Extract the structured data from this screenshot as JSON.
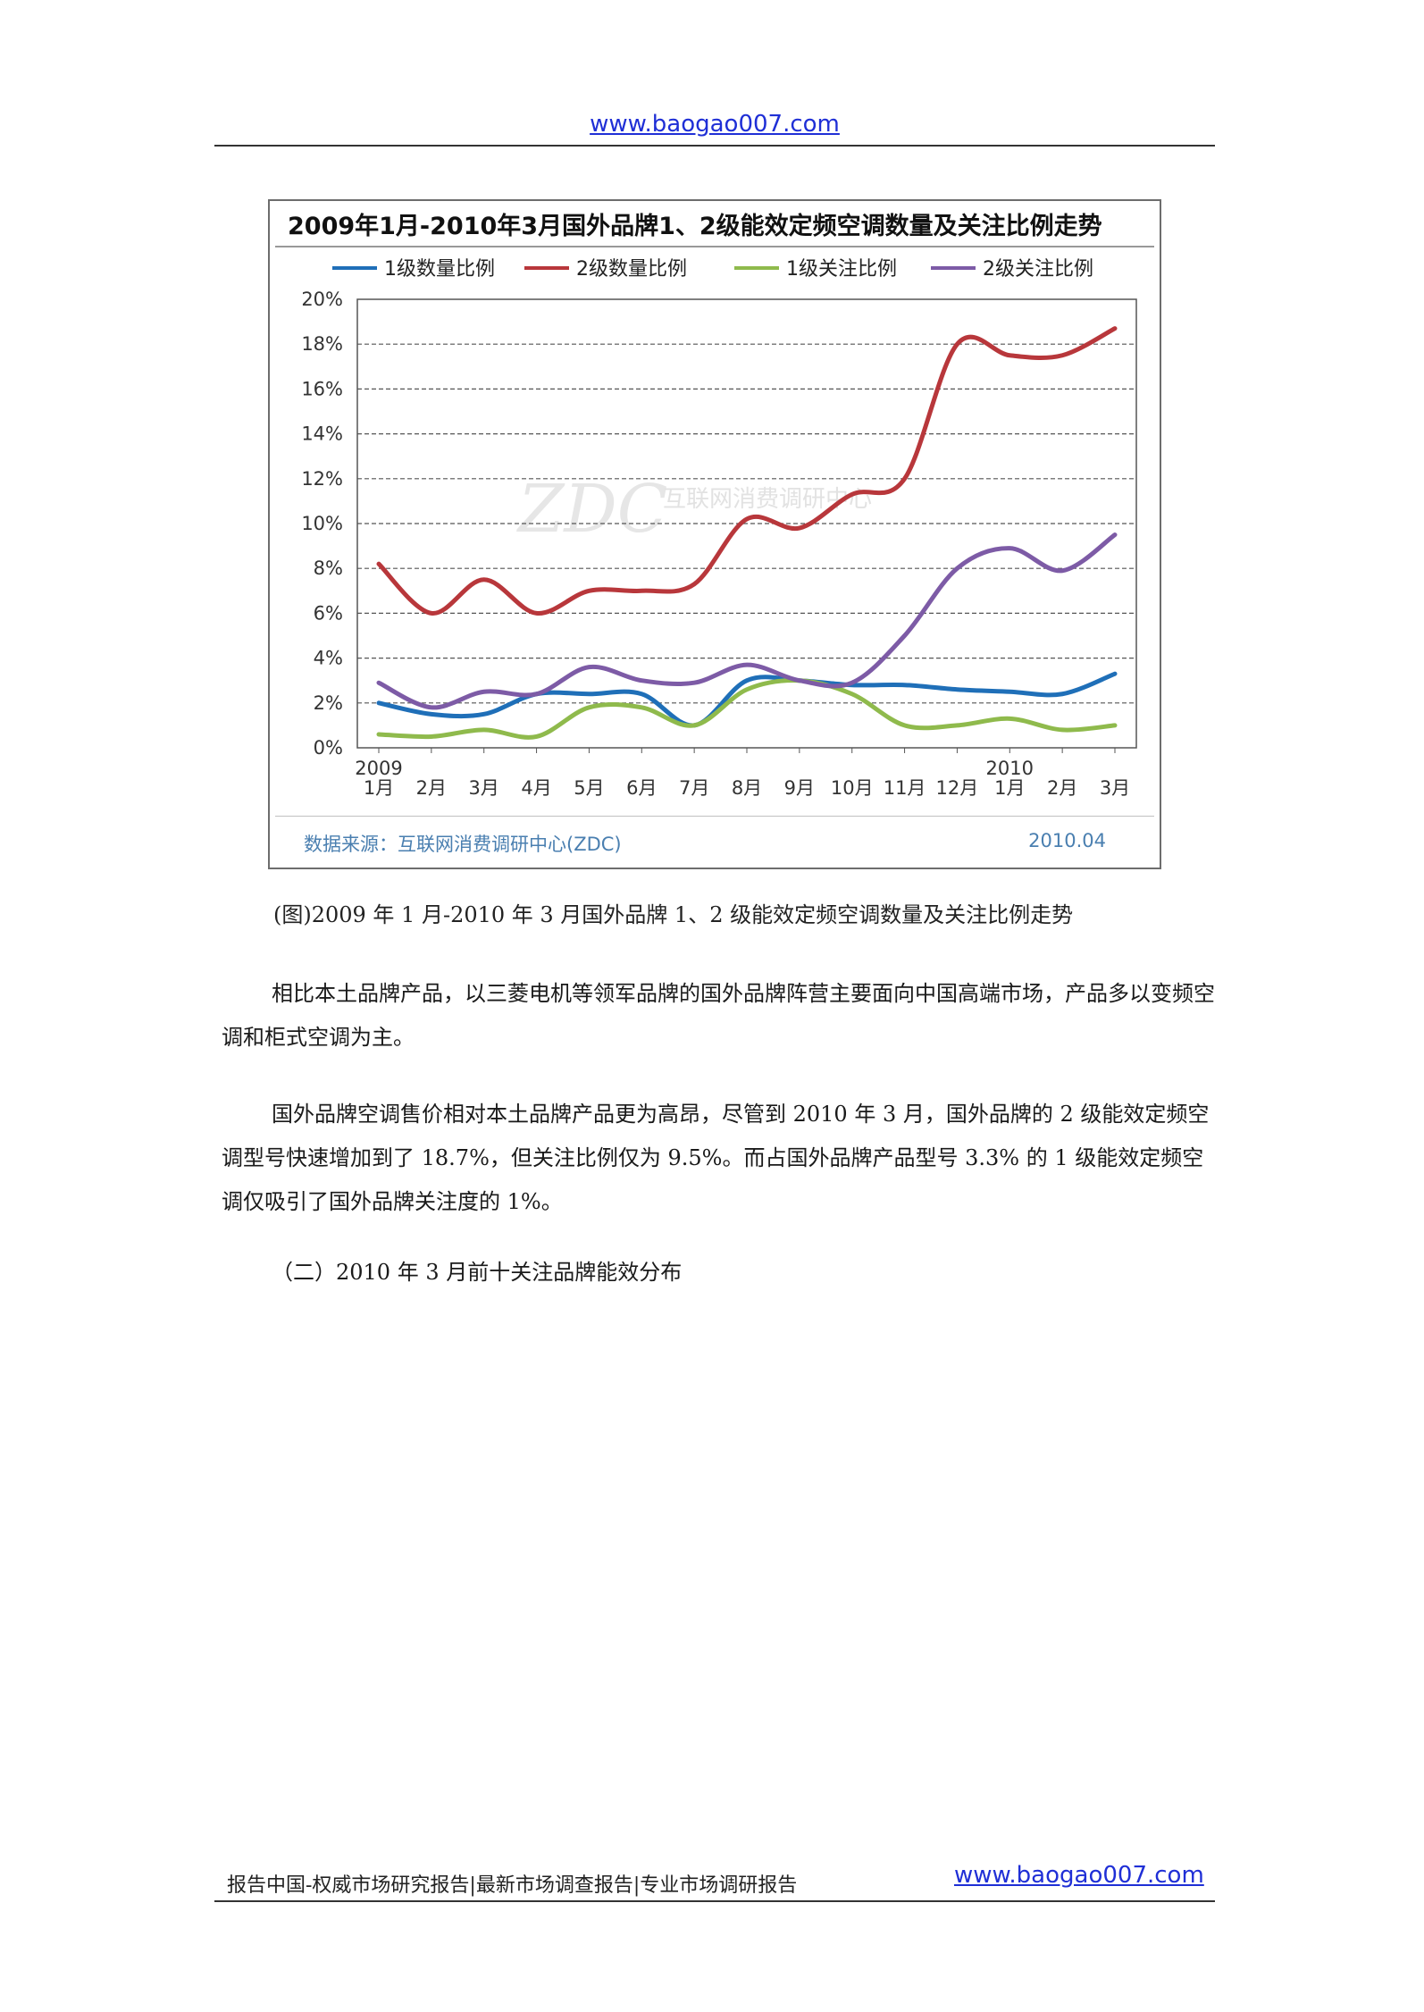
{
  "header": {
    "link": "www.baogao007.com"
  },
  "chart": {
    "title": "2009年1月-2010年3月国外品牌1、2级能效定频空调数量及关注比例走势",
    "watermark": "ZDC",
    "watermark_text": "互联网消费调研中心",
    "source": "数据来源：互联网消费调研中心(ZDC)",
    "date": "2010.04"
  },
  "chart_data": {
    "type": "line",
    "title": "2009年1月-2010年3月国外品牌1、2级能效定频空调数量及关注比例走势",
    "categories": [
      "2009年1月",
      "2月",
      "3月",
      "4月",
      "5月",
      "6月",
      "7月",
      "8月",
      "9月",
      "10月",
      "11月",
      "12月",
      "2010年1月",
      "2月",
      "3月"
    ],
    "tick_labels": [
      [
        "2009",
        "1月"
      ],
      [
        "",
        "2月"
      ],
      [
        "",
        "3月"
      ],
      [
        "",
        "4月"
      ],
      [
        "",
        "5月"
      ],
      [
        "",
        "6月"
      ],
      [
        "",
        "7月"
      ],
      [
        "",
        "8月"
      ],
      [
        "",
        "9月"
      ],
      [
        "",
        "10月"
      ],
      [
        "",
        "11月"
      ],
      [
        "",
        "12月"
      ],
      [
        "2010",
        "1月"
      ],
      [
        "",
        "2月"
      ],
      [
        "",
        "3月"
      ]
    ],
    "y_ticks": [
      "0%",
      "2%",
      "4%",
      "6%",
      "8%",
      "10%",
      "12%",
      "14%",
      "16%",
      "18%",
      "20%"
    ],
    "ylim": [
      0,
      20
    ],
    "grid": true,
    "legend_position": "top",
    "series": [
      {
        "name": "1级数量比例",
        "color": "#1f6fb8",
        "values": [
          2.0,
          1.5,
          1.5,
          2.4,
          2.4,
          2.4,
          1.0,
          3.0,
          3.0,
          2.8,
          2.8,
          2.6,
          2.5,
          2.4,
          3.3
        ]
      },
      {
        "name": "2级数量比例",
        "color": "#b8373b",
        "values": [
          8.2,
          6.0,
          7.5,
          6.0,
          7.0,
          7.0,
          7.3,
          10.2,
          9.8,
          11.3,
          12.0,
          18.0,
          17.5,
          17.5,
          18.7
        ]
      },
      {
        "name": "1级关注比例",
        "color": "#8fba4c",
        "values": [
          0.6,
          0.5,
          0.8,
          0.5,
          1.8,
          1.8,
          1.0,
          2.6,
          3.0,
          2.4,
          1.0,
          1.0,
          1.3,
          0.8,
          1.0
        ]
      },
      {
        "name": "2级关注比例",
        "color": "#7d5ba6",
        "values": [
          2.9,
          1.8,
          2.5,
          2.4,
          3.6,
          3.0,
          2.9,
          3.7,
          3.0,
          2.9,
          5.0,
          8.0,
          8.9,
          7.9,
          9.5
        ]
      }
    ]
  },
  "caption": "(图)2009 年 1 月-2010 年 3 月国外品牌 1、2 级能效定频空调数量及关注比例走势",
  "paragraphs": [
    "相比本土品牌产品，以三菱电机等领军品牌的国外品牌阵营主要面向中国高端市场，产品多以变频空调和柜式空调为主。",
    "国外品牌空调售价相对本土品牌产品更为高昂，尽管到 2010 年 3 月，国外品牌的 2 级能效定频空调型号快速增加到了 18.7%，但关注比例仅为 9.5%。而占国外品牌产品型号 3.3% 的 1 级能效定频空调仅吸引了国外品牌关注度的 1%。"
  ],
  "section_heading": "（二）2010 年 3 月前十关注品牌能效分布",
  "footer": {
    "text": "报告中国-权威市场研究报告|最新市场调查报告|专业市场调研报告",
    "link": "www.baogao007.com"
  }
}
